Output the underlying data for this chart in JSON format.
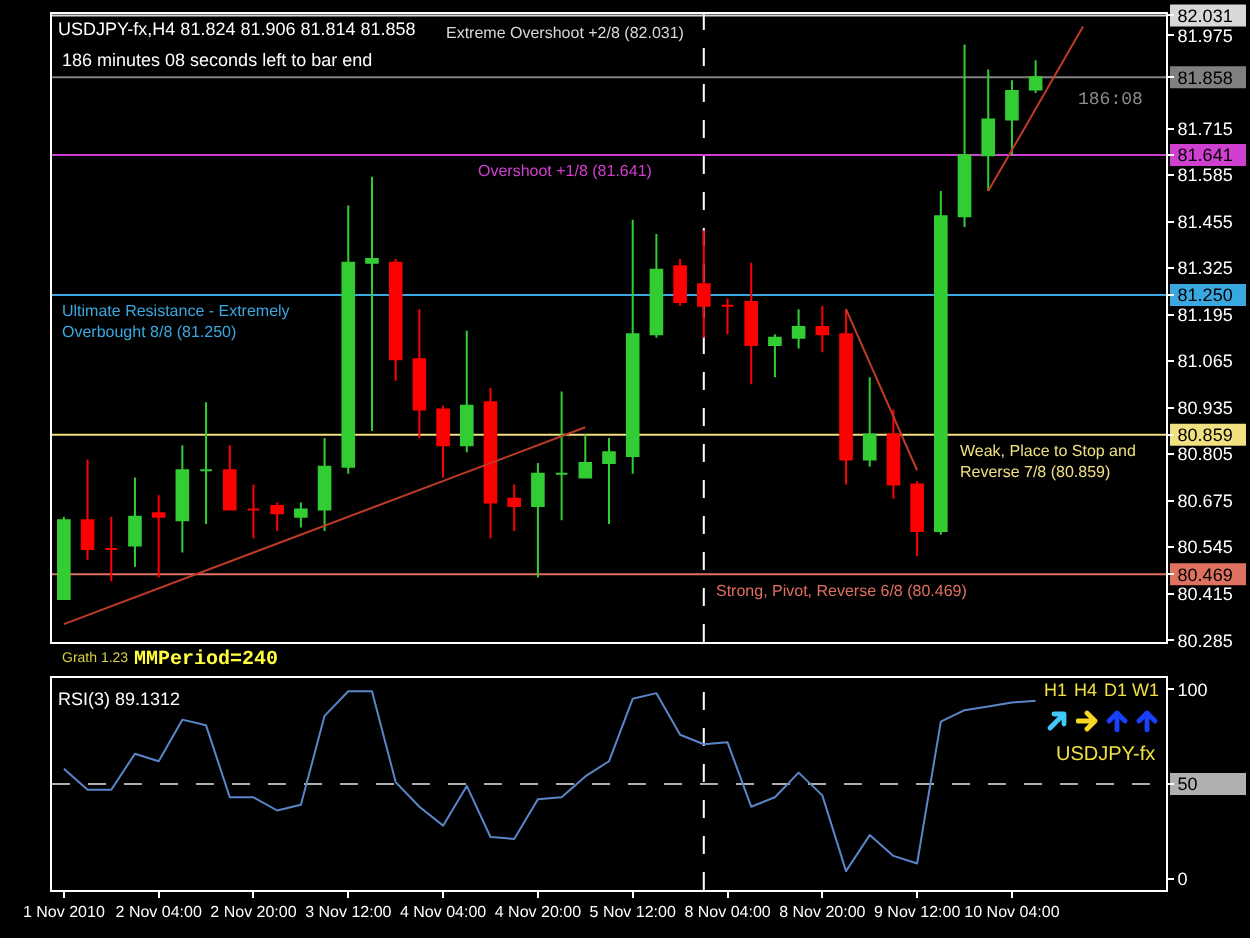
{
  "chart_data": [
    {
      "type": "candlestick",
      "title": "USDJPY-fx,H4 81.824 81.906 81.814 81.858",
      "subtitle": "186 minutes 08 seconds left to bar end",
      "categories": [
        null,
        null,
        null,
        null,
        null,
        null,
        null,
        null,
        null,
        null,
        null,
        null,
        null,
        null,
        null,
        null,
        null,
        null,
        null,
        null,
        null,
        null,
        null,
        null,
        null,
        null,
        null,
        null,
        null,
        null,
        null,
        null,
        null,
        null,
        null,
        null,
        null,
        null,
        null,
        null,
        null,
        null,
        null,
        null,
        null,
        null,
        null
      ],
      "ohlc": [
        [
          80.4,
          80.63,
          80.4,
          80.62
        ],
        [
          80.62,
          80.79,
          80.51,
          80.54
        ],
        [
          80.54,
          80.63,
          80.45,
          80.54
        ],
        [
          80.55,
          80.74,
          80.49,
          80.63
        ],
        [
          80.64,
          80.69,
          80.46,
          80.63
        ],
        [
          80.62,
          80.83,
          80.53,
          80.76
        ],
        [
          80.76,
          80.95,
          80.61,
          80.76
        ],
        [
          80.76,
          80.83,
          80.65,
          80.65
        ],
        [
          80.65,
          80.72,
          80.57,
          80.65
        ],
        [
          80.66,
          80.67,
          80.59,
          80.64
        ],
        [
          80.63,
          80.67,
          80.6,
          80.65
        ],
        [
          80.65,
          80.85,
          80.59,
          80.77
        ],
        [
          80.77,
          81.5,
          80.75,
          81.34
        ],
        [
          81.34,
          81.58,
          80.87,
          81.35
        ],
        [
          81.34,
          81.35,
          81.01,
          81.07
        ],
        [
          81.07,
          81.21,
          80.85,
          80.93
        ],
        [
          80.93,
          80.94,
          80.74,
          80.83
        ],
        [
          80.83,
          81.15,
          80.81,
          80.94
        ],
        [
          80.95,
          80.99,
          80.57,
          80.67
        ],
        [
          80.68,
          80.72,
          80.59,
          80.66
        ],
        [
          80.66,
          80.78,
          80.46,
          80.75
        ],
        [
          80.75,
          80.98,
          80.62,
          80.75
        ],
        [
          80.74,
          80.86,
          80.74,
          80.78
        ],
        [
          80.78,
          80.85,
          80.61,
          80.81
        ],
        [
          80.8,
          81.46,
          80.75,
          81.14
        ],
        [
          81.14,
          81.42,
          81.13,
          81.32
        ],
        [
          81.33,
          81.35,
          81.22,
          81.23
        ],
        [
          81.28,
          81.43,
          81.13,
          81.22
        ],
        [
          81.22,
          81.24,
          81.14,
          81.22
        ],
        [
          81.23,
          81.34,
          81.0,
          81.11
        ],
        [
          81.11,
          81.14,
          81.02,
          81.13
        ],
        [
          81.13,
          81.21,
          81.1,
          81.16
        ],
        [
          81.16,
          81.22,
          81.09,
          81.14
        ],
        [
          81.14,
          81.21,
          80.72,
          80.79
        ],
        [
          80.79,
          81.02,
          80.77,
          80.86
        ],
        [
          80.86,
          80.93,
          80.68,
          80.72
        ],
        [
          80.72,
          80.73,
          80.52,
          80.59
        ],
        [
          80.59,
          81.54,
          80.58,
          81.47
        ],
        [
          81.47,
          81.95,
          81.44,
          81.64
        ],
        [
          81.64,
          81.88,
          81.54,
          81.74
        ],
        [
          81.74,
          81.85,
          81.64,
          81.82
        ],
        [
          81.824,
          81.906,
          81.814,
          81.858
        ],
        null,
        null,
        null,
        null,
        null
      ],
      "series": [
        {
          "type": "line",
          "values": [
            80.33,
            null,
            null,
            null,
            null,
            null,
            null,
            null,
            null,
            null,
            null,
            null,
            null,
            null,
            null,
            null,
            null,
            null,
            null,
            null,
            null,
            null,
            80.88,
            null,
            null,
            null,
            null,
            null,
            null,
            null,
            null,
            null,
            null,
            null,
            null,
            null,
            null,
            null,
            null,
            null,
            null,
            null,
            null,
            null,
            null,
            null,
            null
          ],
          "color": "#c03a28"
        },
        {
          "type": "line",
          "values": [
            null,
            null,
            null,
            null,
            null,
            null,
            null,
            null,
            null,
            null,
            null,
            null,
            null,
            null,
            null,
            null,
            null,
            null,
            null,
            null,
            null,
            null,
            null,
            null,
            null,
            null,
            null,
            null,
            null,
            null,
            null,
            null,
            null,
            81.21,
            null,
            null,
            80.76,
            null,
            null,
            null,
            null,
            null,
            null,
            null,
            null,
            null,
            null
          ],
          "color": "#c03a28"
        },
        {
          "type": "line",
          "values": [
            null,
            null,
            null,
            null,
            null,
            null,
            null,
            null,
            null,
            null,
            null,
            null,
            null,
            null,
            null,
            null,
            null,
            null,
            null,
            null,
            null,
            null,
            null,
            null,
            null,
            null,
            null,
            null,
            null,
            null,
            null,
            null,
            null,
            null,
            null,
            null,
            null,
            null,
            null,
            81.54,
            null,
            null,
            null,
            82.0,
            null,
            null,
            null
          ],
          "color": "#c03a28"
        }
      ],
      "ylim": [
        80.28,
        82.035
      ],
      "yticks": [
        82.031,
        81.975,
        81.858,
        81.715,
        81.641,
        81.585,
        81.455,
        81.325,
        {
          "value": 81.25,
          "label": "81.250"
        },
        81.195,
        81.065,
        80.935,
        80.859,
        80.805,
        80.675,
        80.545,
        80.469,
        80.415,
        80.285
      ],
      "ref_lines": [
        {
          "axis": "y",
          "value": 82.031,
          "label": "Extreme Overshoot +2/8 (82.031)",
          "color": "#d8d8d8"
        },
        {
          "axis": "y",
          "value": 81.858,
          "color": "#808080"
        },
        {
          "axis": "y",
          "value": 81.641,
          "label": "Overshoot +1/8 (81.641)",
          "color": "#d040d0"
        },
        {
          "axis": "y",
          "value": 81.25,
          "label": "Ultimate Resistance - Extremely Overbought 8/8 (81.250)",
          "color": "#3aa8e0"
        },
        {
          "axis": "y",
          "value": 80.859,
          "label": "Weak, Place to Stop and Reverse 7/8 (80.859)",
          "color": "#f0e080"
        },
        {
          "axis": "y",
          "value": 80.469,
          "label": "Strong, Pivot, Reverse 6/8 (80.469)",
          "color": "#e07060"
        }
      ],
      "annotations": [
        "Grath 1.23",
        "MMPeriod=240",
        "186:08"
      ]
    },
    {
      "type": "line",
      "title": "RSI(3) 89.1312",
      "categories": [
        "1 Nov 2010",
        null,
        null,
        null,
        "2 Nov 04:00",
        null,
        null,
        null,
        "2 Nov 20:00",
        null,
        null,
        null,
        "3 Nov 12:00",
        null,
        null,
        null,
        "4 Nov 04:00",
        null,
        null,
        null,
        "4 Nov 20:00",
        null,
        null,
        null,
        "5 Nov 12:00",
        null,
        null,
        null,
        "8 Nov 04:00",
        null,
        null,
        null,
        "8 Nov 20:00",
        null,
        null,
        null,
        "9 Nov 12:00",
        null,
        null,
        null,
        "10 Nov 04:00",
        null,
        null,
        null,
        null,
        null,
        null
      ],
      "values": [
        58,
        47,
        47,
        66,
        62,
        84,
        81,
        43,
        43,
        36,
        39,
        86,
        99,
        99,
        51,
        38,
        28,
        49,
        22,
        21,
        42,
        43,
        54,
        62,
        95,
        98,
        76,
        71,
        72,
        38,
        43,
        56,
        44,
        4,
        23,
        12,
        8,
        83,
        89,
        91,
        93,
        94,
        null,
        null,
        null,
        null,
        null
      ],
      "color": "#5a86c8",
      "ylim": [
        -6,
        106
      ],
      "yticks": [
        0,
        50,
        100
      ],
      "ref_lines": [
        {
          "axis": "y",
          "value": 50,
          "color": "#b0b0b0",
          "line_style": "dashed"
        }
      ],
      "annotations": [
        "USDJPY-fx",
        "H1",
        "H4",
        "D1",
        "W1"
      ]
    }
  ]
}
